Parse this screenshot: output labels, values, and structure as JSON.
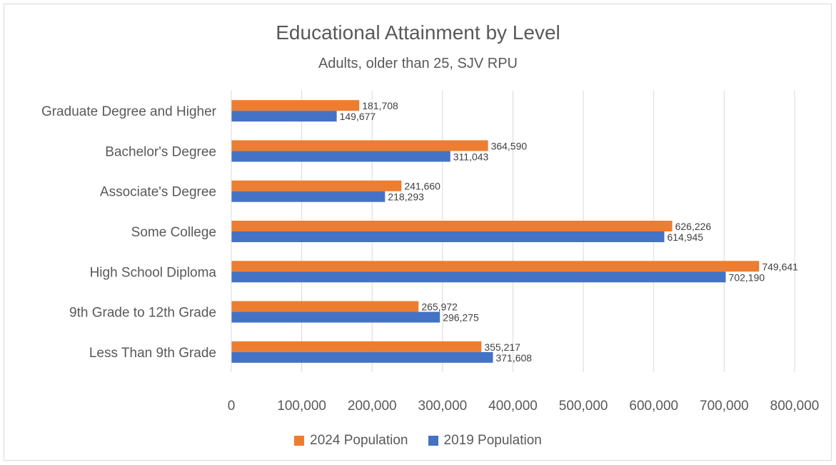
{
  "chart_data": {
    "type": "bar",
    "orientation": "horizontal",
    "title": "Educational Attainment by Level",
    "subtitle": "Adults, older than 25, SJV RPU",
    "categories": [
      "Graduate Degree and Higher",
      "Bachelor's Degree",
      "Associate's Degree",
      "Some College",
      "High School Diploma",
      "9th Grade to 12th Grade",
      "Less Than 9th Grade"
    ],
    "series": [
      {
        "name": "2024 Population",
        "color": "#ed7d31",
        "values": [
          181708,
          364590,
          241660,
          626226,
          749641,
          265972,
          355217
        ],
        "labels": [
          "181,708",
          "364,590",
          "241,660",
          "626,226",
          "749,641",
          "265,972",
          "355,217"
        ]
      },
      {
        "name": "2019 Population",
        "color": "#4472c4",
        "values": [
          149677,
          311043,
          218293,
          614945,
          702190,
          296275,
          371608
        ],
        "labels": [
          "149,677",
          "311,043",
          "218,293",
          "614,945",
          "702,190",
          "296,275",
          "371,608"
        ]
      }
    ],
    "xlim": [
      0,
      800000
    ],
    "xticks": [
      0,
      100000,
      200000,
      300000,
      400000,
      500000,
      600000,
      700000,
      800000
    ],
    "xtick_labels": [
      "0",
      "100,000",
      "200,000",
      "300,000",
      "400,000",
      "500,000",
      "600,000",
      "700,000",
      "800,000"
    ],
    "grid": true,
    "legend_position": "bottom"
  }
}
